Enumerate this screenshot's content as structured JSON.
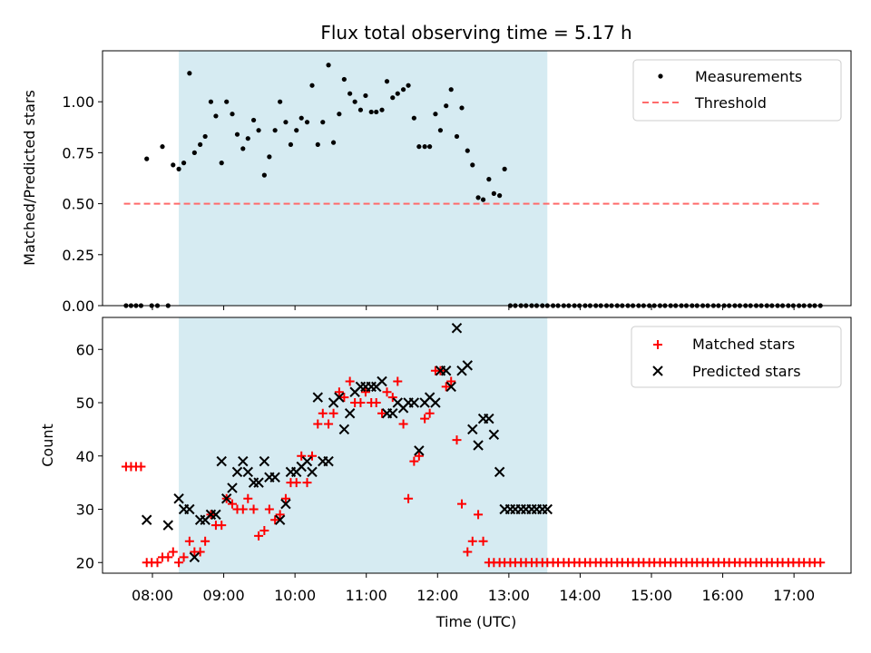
{
  "colors": {
    "band": "#add8e6",
    "measurement": "#000000",
    "threshold": "#ff6b6b",
    "matched": "#ff0000",
    "predicted": "#000000"
  },
  "chart_data": [
    {
      "type": "scatter",
      "title": "Flux total observing time = 5.17 h",
      "xlabel": "",
      "ylabel": "Matched/Predicted stars",
      "xlim": [
        7.3,
        17.8
      ],
      "ylim": [
        0.0,
        1.25
      ],
      "yticks": [
        0.0,
        0.25,
        0.5,
        0.75,
        1.0
      ],
      "ytick_labels": [
        "0.00",
        "0.25",
        "0.50",
        "0.75",
        "1.00"
      ],
      "observing_band": [
        8.37,
        13.54
      ],
      "legend": {
        "placement": "top-right",
        "entries": [
          "Measurements",
          "Threshold"
        ]
      },
      "threshold": {
        "name": "Threshold",
        "value": 0.5,
        "x": [
          7.6,
          17.4
        ]
      },
      "series": [
        {
          "name": "Measurements",
          "x": [
            7.63,
            7.7,
            7.77,
            7.84,
            7.92,
            7.99,
            8.07,
            8.14,
            8.22,
            8.29,
            8.37,
            8.44,
            8.52,
            8.59,
            8.67,
            8.74,
            8.82,
            8.89,
            8.97,
            9.04,
            9.12,
            9.19,
            9.27,
            9.34,
            9.42,
            9.49,
            9.57,
            9.64,
            9.72,
            9.79,
            9.87,
            9.94,
            10.02,
            10.09,
            10.17,
            10.24,
            10.32,
            10.39,
            10.47,
            10.54,
            10.62,
            10.69,
            10.77,
            10.84,
            10.92,
            10.99,
            11.07,
            11.14,
            11.22,
            11.29,
            11.37,
            11.44,
            11.52,
            11.59,
            11.67,
            11.74,
            11.82,
            11.89,
            11.97,
            12.04,
            12.12,
            12.19,
            12.27,
            12.34,
            12.42,
            12.49,
            12.57,
            12.64,
            12.72,
            12.79,
            12.87,
            12.94,
            13.02,
            13.09,
            13.17,
            13.24,
            13.32,
            13.39,
            13.47,
            13.54,
            13.62,
            13.69,
            13.77,
            13.84,
            13.92,
            13.99,
            14.07,
            14.14,
            14.22,
            14.29,
            14.37,
            14.44,
            14.52,
            14.59,
            14.67,
            14.74,
            14.82,
            14.89,
            14.97,
            15.04,
            15.12,
            15.19,
            15.27,
            15.34,
            15.42,
            15.49,
            15.57,
            15.64,
            15.72,
            15.79,
            15.87,
            15.94,
            16.02,
            16.09,
            16.17,
            16.24,
            16.32,
            16.39,
            16.47,
            16.54,
            16.62,
            16.69,
            16.77,
            16.84,
            16.92,
            16.99,
            17.07,
            17.14,
            17.22,
            17.29,
            17.37
          ],
          "values": [
            0,
            0,
            0,
            0,
            0.72,
            0,
            0,
            0.78,
            0,
            0.69,
            0.67,
            0.7,
            1.14,
            0.75,
            0.79,
            0.83,
            1.0,
            0.93,
            0.7,
            1.0,
            0.94,
            0.84,
            0.77,
            0.82,
            0.91,
            0.86,
            0.64,
            0.73,
            0.86,
            1.0,
            0.9,
            0.79,
            0.86,
            0.92,
            0.9,
            1.08,
            0.79,
            0.9,
            1.18,
            0.8,
            0.94,
            1.11,
            1.04,
            1.0,
            0.96,
            1.03,
            0.95,
            0.95,
            0.96,
            1.1,
            1.02,
            1.04,
            1.06,
            1.08,
            0.92,
            0.78,
            0.78,
            0.78,
            0.94,
            0.86,
            0.98,
            1.06,
            0.83,
            0.97,
            0.76,
            0.69,
            0.53,
            0.52,
            0.62,
            0.55,
            0.54,
            0.67,
            0,
            0,
            0,
            0,
            0,
            0,
            0,
            0,
            0,
            0,
            0,
            0,
            0,
            0,
            0,
            0,
            0,
            0,
            0,
            0,
            0,
            0,
            0,
            0,
            0,
            0,
            0,
            0,
            0,
            0,
            0,
            0,
            0,
            0,
            0,
            0,
            0,
            0,
            0,
            0,
            0,
            0,
            0,
            0,
            0,
            0,
            0,
            0,
            0,
            0,
            0,
            0,
            0,
            0,
            0,
            0,
            0,
            0,
            0
          ]
        }
      ]
    },
    {
      "type": "scatter",
      "title": "",
      "xlabel": "Time (UTC)",
      "ylabel": "Count",
      "xlim": [
        7.3,
        17.8
      ],
      "ylim": [
        18,
        66
      ],
      "yticks": [
        20,
        30,
        40,
        50,
        60
      ],
      "ytick_labels": [
        "20",
        "30",
        "40",
        "50",
        "60"
      ],
      "xticks": [
        8,
        9,
        10,
        11,
        12,
        13,
        14,
        15,
        16,
        17
      ],
      "xtick_labels": [
        "08:00",
        "09:00",
        "10:00",
        "11:00",
        "12:00",
        "13:00",
        "14:00",
        "15:00",
        "16:00",
        "17:00"
      ],
      "observing_band": [
        8.37,
        13.54
      ],
      "legend": {
        "placement": "top-right",
        "entries": [
          "Matched stars",
          "Predicted stars"
        ]
      },
      "series": [
        {
          "name": "Matched stars",
          "marker": "+",
          "x": [
            7.63,
            7.7,
            7.77,
            7.84,
            7.92,
            7.99,
            8.07,
            8.14,
            8.22,
            8.29,
            8.37,
            8.44,
            8.52,
            8.59,
            8.67,
            8.74,
            8.82,
            8.89,
            8.97,
            9.04,
            9.12,
            9.19,
            9.27,
            9.34,
            9.42,
            9.49,
            9.57,
            9.64,
            9.72,
            9.79,
            9.87,
            9.94,
            10.02,
            10.09,
            10.17,
            10.24,
            10.32,
            10.39,
            10.47,
            10.54,
            10.62,
            10.69,
            10.77,
            10.84,
            10.92,
            10.99,
            11.07,
            11.14,
            11.22,
            11.29,
            11.37,
            11.44,
            11.52,
            11.59,
            11.67,
            11.74,
            11.82,
            11.89,
            11.97,
            12.04,
            12.12,
            12.19,
            12.27,
            12.34,
            12.42,
            12.49,
            12.57,
            12.64,
            12.72,
            12.79,
            12.87,
            12.94,
            13.02,
            13.09,
            13.17,
            13.24,
            13.32,
            13.39,
            13.47,
            13.54,
            13.62,
            13.69,
            13.77,
            13.84,
            13.92,
            13.99,
            14.07,
            14.14,
            14.22,
            14.29,
            14.37,
            14.44,
            14.52,
            14.59,
            14.67,
            14.74,
            14.82,
            14.89,
            14.97,
            15.04,
            15.12,
            15.19,
            15.27,
            15.34,
            15.42,
            15.49,
            15.57,
            15.64,
            15.72,
            15.79,
            15.87,
            15.94,
            16.02,
            16.09,
            16.17,
            16.24,
            16.32,
            16.39,
            16.47,
            16.54,
            16.62,
            16.69,
            16.77,
            16.84,
            16.92,
            16.99,
            17.07,
            17.14,
            17.22,
            17.29,
            17.37
          ],
          "values": [
            38,
            38,
            38,
            38,
            20,
            20,
            20,
            21,
            21,
            22,
            20,
            21,
            24,
            22,
            22,
            24,
            29,
            27,
            27,
            32,
            31,
            30,
            30,
            32,
            30,
            25,
            26,
            30,
            28,
            29,
            32,
            35,
            35,
            40,
            35,
            40,
            46,
            48,
            46,
            48,
            52,
            51,
            54,
            50,
            50,
            52,
            50,
            50,
            48,
            52,
            51,
            54,
            46,
            32,
            39,
            40,
            47,
            48,
            56,
            56,
            53,
            54,
            43,
            31,
            22,
            24,
            29,
            24,
            20,
            20,
            20,
            20,
            20,
            20,
            20,
            20,
            20,
            20,
            20,
            20,
            20,
            20,
            20,
            20,
            20,
            20,
            20,
            20,
            20,
            20,
            20,
            20,
            20,
            20,
            20,
            20,
            20,
            20,
            20,
            20,
            20,
            20,
            20,
            20,
            20,
            20,
            20,
            20,
            20,
            20,
            20,
            20,
            20,
            20,
            20,
            20,
            20,
            20,
            20,
            20,
            20,
            20,
            20,
            20,
            20,
            20,
            20,
            20,
            20,
            20,
            20
          ]
        },
        {
          "name": "Predicted stars",
          "marker": "x",
          "x": [
            7.92,
            8.22,
            8.37,
            8.44,
            8.52,
            8.59,
            8.67,
            8.74,
            8.82,
            8.89,
            8.97,
            9.04,
            9.12,
            9.19,
            9.27,
            9.34,
            9.42,
            9.49,
            9.57,
            9.64,
            9.72,
            9.79,
            9.87,
            9.94,
            10.02,
            10.09,
            10.17,
            10.24,
            10.32,
            10.39,
            10.47,
            10.54,
            10.62,
            10.69,
            10.77,
            10.84,
            10.92,
            10.99,
            11.07,
            11.14,
            11.22,
            11.29,
            11.37,
            11.44,
            11.52,
            11.59,
            11.67,
            11.74,
            11.82,
            11.89,
            11.97,
            12.04,
            12.12,
            12.19,
            12.27,
            12.34,
            12.42,
            12.49,
            12.57,
            12.64,
            12.72,
            12.79,
            12.87,
            12.94,
            13.02,
            13.09,
            13.17,
            13.24,
            13.32,
            13.39,
            13.47,
            13.54
          ],
          "values": [
            28,
            27,
            32,
            30,
            30,
            21,
            28,
            28,
            29,
            29,
            39,
            32,
            34,
            37,
            39,
            37,
            35,
            35,
            39,
            36,
            36,
            28,
            31,
            37,
            37,
            38,
            39,
            37,
            51,
            39,
            39,
            50,
            51,
            45,
            48,
            52,
            53,
            53,
            53,
            53,
            54,
            48,
            48,
            50,
            49,
            50,
            50,
            41,
            50,
            51,
            50,
            56,
            56,
            53,
            64,
            56,
            57,
            45,
            42,
            47,
            47,
            44,
            37,
            30,
            30,
            30,
            30,
            30,
            30,
            30,
            30,
            30
          ]
        }
      ]
    }
  ]
}
